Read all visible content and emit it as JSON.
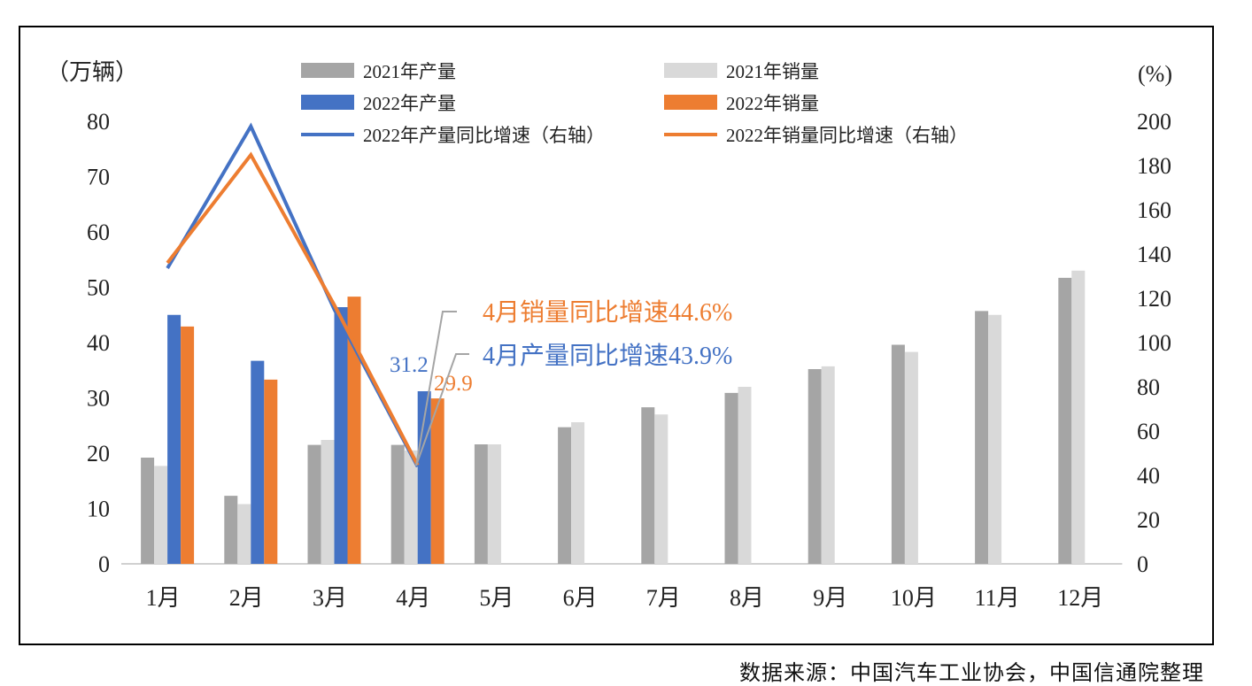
{
  "chart_data": {
    "type": "bar",
    "categories": [
      "1月",
      "2月",
      "3月",
      "4月",
      "5月",
      "6月",
      "7月",
      "8月",
      "9月",
      "10月",
      "11月",
      "12月"
    ],
    "left_axis": {
      "label": "（万辆）",
      "ylim": [
        0,
        80
      ],
      "ticks": [
        0,
        10,
        20,
        30,
        40,
        50,
        60,
        70,
        80
      ]
    },
    "right_axis": {
      "label": "(%)",
      "ylim": [
        0,
        200
      ],
      "ticks": [
        0,
        20,
        40,
        60,
        80,
        100,
        120,
        140,
        160,
        180,
        200
      ]
    },
    "series": [
      {
        "name": "2021年产量",
        "type": "bar",
        "axis": "left",
        "color": "#a5a5a5",
        "values": [
          19.2,
          12.3,
          21.5,
          21.5,
          21.6,
          24.7,
          28.3,
          30.9,
          35.2,
          39.6,
          45.7,
          51.7
        ]
      },
      {
        "name": "2021年销量",
        "type": "bar",
        "axis": "left",
        "color": "#d9d9d9",
        "values": [
          17.7,
          10.8,
          22.4,
          20.5,
          21.6,
          25.6,
          27.0,
          32.0,
          35.7,
          38.3,
          45.0,
          53.0
        ]
      },
      {
        "name": "2022年产量",
        "type": "bar",
        "axis": "left",
        "color": "#4472c4",
        "values": [
          45.0,
          36.7,
          46.4,
          31.2,
          null,
          null,
          null,
          null,
          null,
          null,
          null,
          null
        ]
      },
      {
        "name": "2022年销量",
        "type": "bar",
        "axis": "left",
        "color": "#ed7d31",
        "values": [
          42.9,
          33.3,
          48.3,
          29.9,
          null,
          null,
          null,
          null,
          null,
          null,
          null,
          null
        ]
      },
      {
        "name": "2022年产量同比增速（右轴）",
        "type": "line",
        "axis": "right",
        "color": "#4472c4",
        "values": [
          133.6,
          197.7,
          115,
          43.9,
          null,
          null,
          null,
          null,
          null,
          null,
          null,
          null
        ]
      },
      {
        "name": "2022年销量同比增速（右轴）",
        "type": "line",
        "axis": "right",
        "color": "#ed7d31",
        "values": [
          136,
          184.8,
          117,
          44.6,
          null,
          null,
          null,
          null,
          null,
          null,
          null,
          null
        ]
      }
    ],
    "data_labels": [
      {
        "text": "31.2",
        "series": "2022年产量",
        "category": "4月",
        "color": "#4472c4"
      },
      {
        "text": "29.9",
        "series": "2022年销量",
        "category": "4月",
        "color": "#ed7d31"
      }
    ],
    "annotations": [
      {
        "text": "4月销量同比增速44.6%",
        "color": "#ed7d31"
      },
      {
        "text": "4月产量同比增速43.9%",
        "color": "#4472c4"
      }
    ],
    "legend_position": "top"
  },
  "source": "数据来源：中国汽车工业协会，中国信通院整理"
}
